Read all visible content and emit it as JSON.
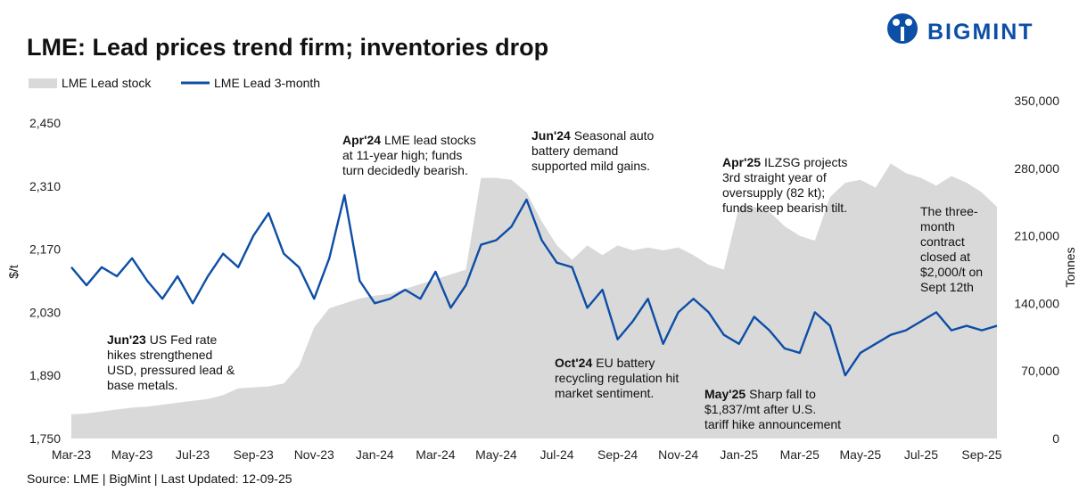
{
  "logo": "BIGMINT",
  "chart_data": {
    "type": "line",
    "title": "LME: Lead prices trend firm; inventories drop",
    "y_label": "$/t",
    "y2_label": "Tonnes",
    "source": "Source: LME | BigMint | Last Updated: 12-09-25",
    "categories": [
      "Mar-23",
      null,
      null,
      null,
      "May-23",
      null,
      null,
      null,
      "Jul-23",
      null,
      null,
      null,
      "Sep-23",
      null,
      null,
      null,
      "Nov-23",
      null,
      null,
      null,
      "Jan-24",
      null,
      null,
      null,
      "Mar-24",
      null,
      null,
      null,
      "May-24",
      null,
      null,
      null,
      "Jul-24",
      null,
      null,
      null,
      "Sep-24",
      null,
      null,
      null,
      "Nov-24",
      null,
      null,
      null,
      "Jan-25",
      null,
      null,
      null,
      "Mar-25",
      null,
      null,
      null,
      "May-25",
      null,
      null,
      null,
      "Jul-25",
      null,
      null,
      null,
      "Sep-25",
      null
    ],
    "ylim": [
      1750,
      2450
    ],
    "yticks": [
      {
        "value": 1750,
        "label": "1,750"
      },
      {
        "value": 1890,
        "label": "1,890"
      },
      {
        "value": 2030,
        "label": "2,030"
      },
      {
        "value": 2170,
        "label": "2,170"
      },
      {
        "value": 2310,
        "label": "2,310"
      },
      {
        "value": 2450,
        "label": "2,450"
      }
    ],
    "y2lim": [
      0,
      350000
    ],
    "y2ticks": [
      0,
      {
        "value": 70000,
        "label": "70,000"
      },
      {
        "value": 140000,
        "label": "140,000"
      },
      {
        "value": 210000,
        "label": "210,000"
      },
      {
        "value": 280000,
        "label": "280,000"
      },
      {
        "value": 350000,
        "label": "350,000"
      }
    ],
    "grid": false,
    "legend": "top-left",
    "series": [
      {
        "name": "LME Lead stock",
        "type": "area",
        "axis": "y2",
        "color": "#d9d9d9",
        "values": [
          25000,
          26000,
          28000,
          30000,
          32000,
          33000,
          35000,
          37000,
          39000,
          41000,
          45000,
          52000,
          53000,
          54000,
          57000,
          75000,
          115000,
          135000,
          140000,
          145000,
          148000,
          150000,
          155000,
          160000,
          165000,
          170000,
          175000,
          270000,
          270000,
          268000,
          255000,
          225000,
          200000,
          185000,
          200000,
          190000,
          200000,
          195000,
          198000,
          195000,
          198000,
          190000,
          180000,
          175000,
          240000,
          240000,
          235000,
          220000,
          210000,
          205000,
          250000,
          265000,
          268000,
          260000,
          285000,
          275000,
          270000,
          262000,
          272000,
          265000,
          255000,
          240000
        ]
      },
      {
        "name": "LME Lead 3-month",
        "type": "line",
        "color": "#0d4ea6",
        "values": [
          2130,
          2090,
          2130,
          2110,
          2150,
          2100,
          2060,
          2110,
          2050,
          2110,
          2160,
          2130,
          2200,
          2250,
          2160,
          2130,
          2060,
          2150,
          2290,
          2100,
          2050,
          2060,
          2080,
          2060,
          2120,
          2040,
          2090,
          2180,
          2190,
          2220,
          2280,
          2190,
          2140,
          2130,
          2040,
          2080,
          1970,
          2010,
          2060,
          1960,
          2030,
          2060,
          2030,
          1980,
          1960,
          2020,
          1990,
          1950,
          1940,
          2030,
          2000,
          1890,
          1940,
          1960,
          1980,
          1990,
          2010,
          2030,
          1990,
          2000,
          1990,
          2000
        ]
      }
    ],
    "annotations": [
      {
        "label": "Jun'23",
        "lines": [
          "US Fed rate",
          "hikes strengthened",
          "USD, pressured lead &",
          "base metals."
        ]
      },
      {
        "label": "Apr'24",
        "lines": [
          "LME lead stocks",
          "at 11-year high; funds",
          "turn decidedly bearish."
        ]
      },
      {
        "label": "Jun'24",
        "lines": [
          "Seasonal auto",
          "battery demand",
          "supported mild gains."
        ]
      },
      {
        "label": "Apr'25",
        "lines": [
          "ILZSG projects",
          "3rd straight year of",
          "oversupply (82 kt);",
          "funds keep bearish tilt."
        ]
      },
      {
        "label": "Oct'24",
        "lines": [
          "EU battery",
          "recycling regulation hit",
          "market sentiment."
        ]
      },
      {
        "label": "May'25",
        "lines": [
          "Sharp fall to",
          "$1,837/mt after U.S.",
          "tariff hike announcement"
        ]
      },
      {
        "lines": [
          "The three-",
          "month",
          "contract",
          "closed at",
          "$2,000/t on",
          "Sept 12th"
        ]
      }
    ]
  }
}
